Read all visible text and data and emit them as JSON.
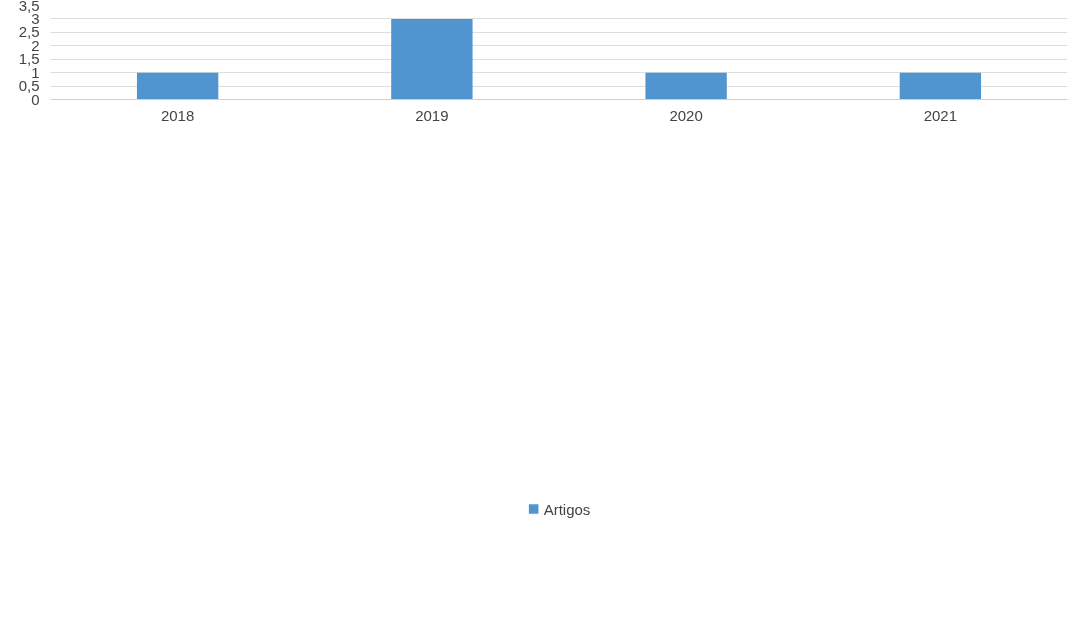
{
  "chart_data": {
    "type": "bar",
    "categories": [
      "2018",
      "2019",
      "2020",
      "2021"
    ],
    "series": [
      {
        "name": "Artigos",
        "color": "#5195d0",
        "values": [
          1,
          3,
          1,
          1
        ]
      }
    ],
    "ylim": [
      0,
      3.5
    ],
    "yticks": [
      0,
      {
        "value": 0.5,
        "label": "0,5"
      },
      1,
      {
        "value": 1.5,
        "label": "1,5"
      },
      2,
      {
        "value": 2.5,
        "label": "2,5"
      },
      3,
      {
        "value": 3.5,
        "label": "3,5"
      }
    ],
    "grid": "y",
    "legend": "bottom"
  }
}
